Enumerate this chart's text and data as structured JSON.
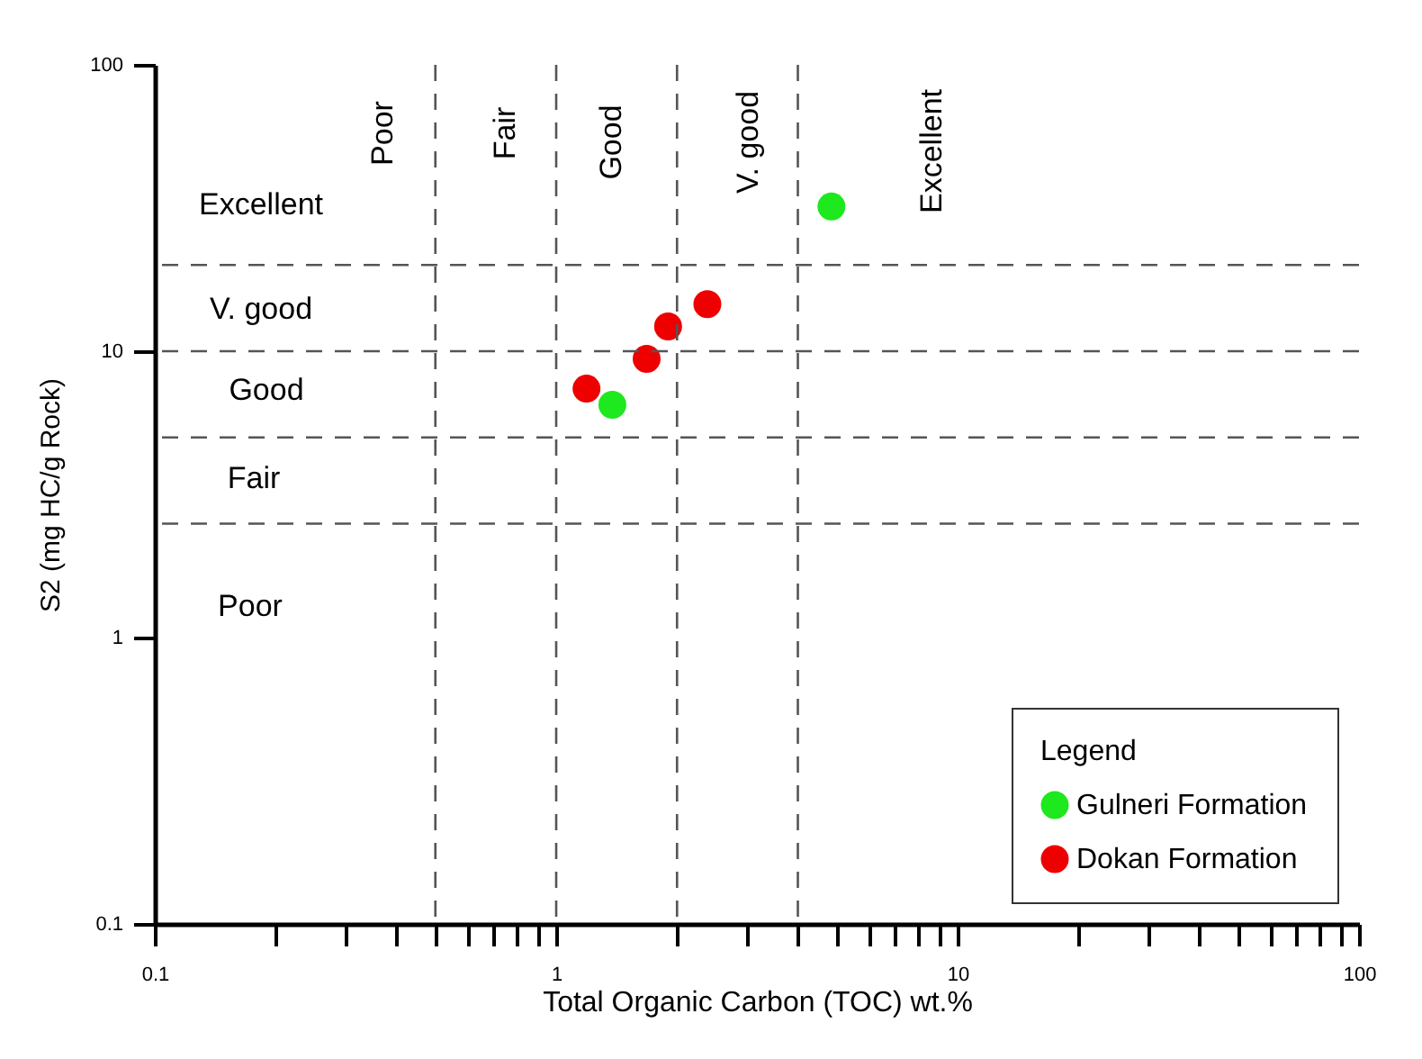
{
  "chart_data": {
    "type": "scatter",
    "xlabel": "Total Organic Carbon (TOC) wt.%",
    "ylabel": "S2 (mg HC/g Rock)",
    "legend_title": "Legend",
    "log": "xy",
    "xlim": [
      0.1,
      100
    ],
    "ylim": [
      0.1,
      100
    ],
    "xticks": [
      0.1,
      {
        "value": 0.2,
        "label": null
      },
      {
        "value": 0.3,
        "label": null
      },
      {
        "value": 0.4,
        "label": null
      },
      {
        "value": 0.5,
        "label": null
      },
      {
        "value": 0.6,
        "label": null
      },
      {
        "value": 0.7,
        "label": null
      },
      {
        "value": 0.8,
        "label": null
      },
      {
        "value": 0.9,
        "label": null
      },
      1,
      {
        "value": 2,
        "label": null
      },
      {
        "value": 3,
        "label": null
      },
      {
        "value": 4,
        "label": null
      },
      {
        "value": 5,
        "label": null
      },
      {
        "value": 6,
        "label": null
      },
      {
        "value": 7,
        "label": null
      },
      {
        "value": 8,
        "label": null
      },
      {
        "value": 9,
        "label": null
      },
      10,
      {
        "value": 20,
        "label": null
      },
      {
        "value": 30,
        "label": null
      },
      {
        "value": 40,
        "label": null
      },
      {
        "value": 50,
        "label": null
      },
      {
        "value": 60,
        "label": null
      },
      {
        "value": 70,
        "label": null
      },
      {
        "value": 80,
        "label": null
      },
      {
        "value": 90,
        "label": null
      },
      100
    ],
    "yticks": [
      0.1,
      1,
      10,
      100
    ],
    "grid": false,
    "legend": "bottom right",
    "marker": "circle",
    "series": [
      {
        "name": "Gulneri Formation",
        "color": "#1ee81e",
        "x": [
          4.85,
          1.38
        ],
        "values": [
          32,
          6.5
        ]
      },
      {
        "name": "Dokan Formation",
        "color": "#ee0000",
        "x": [
          1.19,
          1.68,
          1.9,
          2.38
        ],
        "values": [
          7.4,
          9.4,
          12.2,
          14.6
        ]
      }
    ],
    "ref_lines": [
      {
        "axis": "x",
        "value": 0.5,
        "line_style": "dashed",
        "color": "#555555"
      },
      {
        "axis": "x",
        "value": 1,
        "line_style": "dashed",
        "color": "#555555"
      },
      {
        "axis": "x",
        "value": 2,
        "line_style": "dashed",
        "color": "#555555"
      },
      {
        "axis": "x",
        "value": 4,
        "line_style": "dashed",
        "color": "#555555"
      },
      {
        "axis": "y",
        "value": 2.5,
        "line_style": "dashed",
        "color": "#555555"
      },
      {
        "axis": "y",
        "value": 5,
        "line_style": "dashed",
        "color": "#555555"
      },
      {
        "axis": "y",
        "value": 10,
        "line_style": "dashed",
        "color": "#555555"
      },
      {
        "axis": "y",
        "value": 20,
        "line_style": "dashed",
        "color": "#555555"
      }
    ],
    "annotations": [
      "Poor",
      "Fair",
      "Good",
      "V. good",
      "Excellent",
      "Excellent",
      "V. good",
      "Good",
      "Fair",
      "Poor"
    ]
  }
}
